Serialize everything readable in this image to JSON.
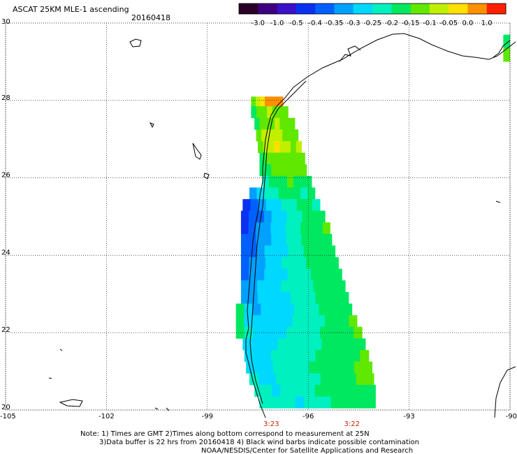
{
  "title": "ASCAT 25KM MLE-1 ascending",
  "date": "20160418",
  "colorbar": {
    "labels": [
      "-3.0",
      "-1.0",
      "-0.5",
      "-0.4",
      "-0.35",
      "-0.3",
      "-0.25",
      "-0.2",
      "-0.15",
      "-0.1",
      "-0.05",
      "0.0",
      "1.0"
    ],
    "colors": [
      "#2a0028",
      "#3f0080",
      "#3a10c8",
      "#0a30f0",
      "#0060ff",
      "#00a0ff",
      "#00d8ff",
      "#00f0c0",
      "#00e860",
      "#60e800",
      "#c0f000",
      "#ffe000",
      "#ff9000",
      "#ff2000"
    ]
  },
  "axes": {
    "x_ticks": [
      "-105",
      "-102",
      "-99",
      "-96",
      "-93",
      "-90"
    ],
    "y_ticks": [
      "30",
      "28",
      "26",
      "24",
      "22",
      "20"
    ],
    "lon_range": [
      -105,
      -90
    ],
    "lat_range": [
      20,
      30
    ]
  },
  "times": [
    {
      "label": "3:23",
      "lon": -97.1
    },
    {
      "label": "3:22",
      "lon": -94.7
    }
  ],
  "notes": [
    "Note: 1) Times are GMT 2)Times along bottom correspond to measurement at 25N",
    "3)Data buffer is 22 hrs from 20160418 4) Black wind barbs indicate possible contamination",
    "NOAA/NESDIS/Center for Satellite Applications and Research"
  ],
  "swath_rows": [
    {
      "lat": 27.95,
      "w": -97.7,
      "e": -96.75,
      "values": [
        -0.15,
        -0.1,
        -0.05,
        0.0,
        0.0,
        0.0,
        0.0
      ]
    },
    {
      "lat": 27.7,
      "w": -97.7,
      "e": -96.6,
      "values": [
        -0.2,
        -0.15,
        -0.15,
        -0.1,
        -0.15,
        -0.15,
        -0.15
      ]
    },
    {
      "lat": 27.4,
      "w": -97.6,
      "e": -96.4,
      "values": [
        -0.2,
        -0.15,
        -0.15,
        -0.15,
        -0.1,
        -0.15,
        -0.15,
        -0.15
      ]
    },
    {
      "lat": 27.1,
      "w": -97.55,
      "e": -96.3,
      "values": [
        -0.15,
        -0.1,
        -0.1,
        -0.1,
        -0.1,
        -0.15,
        -0.15,
        -0.15
      ]
    },
    {
      "lat": 26.8,
      "w": -97.5,
      "e": -96.2,
      "values": [
        -0.15,
        -0.1,
        -0.1,
        -0.05,
        -0.1,
        -0.1,
        -0.15,
        -0.1
      ]
    },
    {
      "lat": 26.5,
      "w": -97.45,
      "e": -96.1,
      "values": [
        -0.2,
        -0.15,
        -0.15,
        -0.15,
        -0.15,
        -0.15,
        -0.15,
        -0.15
      ]
    },
    {
      "lat": 26.2,
      "w": -97.45,
      "e": -96.05,
      "values": [
        -0.2,
        -0.2,
        -0.15,
        -0.15,
        -0.15,
        -0.15,
        -0.15,
        -0.15
      ]
    },
    {
      "lat": 25.9,
      "w": -97.35,
      "e": -95.9,
      "values": [
        -0.25,
        -0.2,
        -0.2,
        -0.2,
        -0.15,
        -0.2,
        -0.2,
        -0.2
      ]
    },
    {
      "lat": 25.6,
      "w": -97.75,
      "e": -95.8,
      "values": [
        -0.35,
        -0.3,
        -0.25,
        -0.25,
        -0.2,
        -0.2,
        -0.2,
        -0.25,
        -0.2
      ]
    },
    {
      "lat": 25.3,
      "w": -97.95,
      "e": -95.65,
      "values": [
        -0.45,
        -0.4,
        -0.35,
        -0.3,
        -0.3,
        -0.25,
        -0.25,
        -0.2,
        -0.2,
        -0.25
      ]
    },
    {
      "lat": 25.0,
      "w": -98.0,
      "e": -95.5,
      "values": [
        -0.45,
        -0.4,
        -0.4,
        -0.35,
        -0.3,
        -0.3,
        -0.25,
        -0.25,
        -0.2,
        -0.2,
        -0.2
      ]
    },
    {
      "lat": 24.7,
      "w": -98.0,
      "e": -95.35,
      "values": [
        -0.45,
        -0.4,
        -0.35,
        -0.35,
        -0.3,
        -0.3,
        -0.25,
        -0.25,
        -0.2,
        -0.2,
        -0.2,
        -0.15
      ]
    },
    {
      "lat": 24.4,
      "w": -98.0,
      "e": -95.3,
      "values": [
        -0.4,
        -0.4,
        -0.35,
        -0.35,
        -0.3,
        -0.3,
        -0.25,
        -0.25,
        -0.2,
        -0.2,
        -0.2,
        -0.2
      ]
    },
    {
      "lat": 24.1,
      "w": -98.0,
      "e": -95.2,
      "values": [
        -0.4,
        -0.4,
        -0.35,
        -0.3,
        -0.3,
        -0.3,
        -0.25,
        -0.25,
        -0.2,
        -0.2,
        -0.2,
        -0.2
      ]
    },
    {
      "lat": 23.8,
      "w": -98.0,
      "e": -95.1,
      "values": [
        -0.4,
        -0.35,
        -0.35,
        -0.3,
        -0.3,
        -0.25,
        -0.25,
        -0.25,
        -0.2,
        -0.2,
        -0.2,
        -0.2
      ]
    },
    {
      "lat": 23.5,
      "w": -98.0,
      "e": -95.0,
      "values": [
        -0.4,
        -0.35,
        -0.35,
        -0.3,
        -0.3,
        -0.3,
        -0.25,
        -0.25,
        -0.25,
        -0.2,
        -0.2,
        -0.2,
        -0.2
      ]
    },
    {
      "lat": 23.2,
      "w": -98.0,
      "e": -94.9,
      "values": [
        -0.35,
        -0.35,
        -0.3,
        -0.3,
        -0.3,
        -0.25,
        -0.25,
        -0.25,
        -0.25,
        -0.2,
        -0.2,
        -0.2,
        -0.2
      ]
    },
    {
      "lat": 22.9,
      "w": -98.0,
      "e": -94.8,
      "values": [
        -0.35,
        -0.35,
        -0.3,
        -0.3,
        -0.3,
        -0.3,
        -0.25,
        -0.25,
        -0.25,
        -0.2,
        -0.2,
        -0.2,
        -0.2
      ]
    },
    {
      "lat": 22.6,
      "w": -98.15,
      "e": -94.7,
      "values": [
        -0.2,
        -0.3,
        -0.35,
        -0.3,
        -0.3,
        -0.3,
        -0.3,
        -0.25,
        -0.25,
        -0.25,
        -0.2,
        -0.2,
        -0.2,
        -0.2
      ]
    },
    {
      "lat": 22.3,
      "w": -98.15,
      "e": -94.55,
      "values": [
        -0.2,
        -0.3,
        -0.3,
        -0.3,
        -0.3,
        -0.3,
        -0.3,
        -0.25,
        -0.25,
        -0.25,
        -0.25,
        -0.2,
        -0.2,
        -0.2,
        -0.15
      ]
    },
    {
      "lat": 22.0,
      "w": -98.15,
      "e": -94.4,
      "values": [
        -0.2,
        -0.25,
        -0.3,
        -0.3,
        -0.3,
        -0.3,
        -0.25,
        -0.25,
        -0.25,
        -0.25,
        -0.2,
        -0.2,
        -0.2,
        -0.2,
        -0.15
      ]
    },
    {
      "lat": 21.7,
      "w": -97.95,
      "e": -94.3,
      "values": [
        -0.3,
        -0.3,
        -0.3,
        -0.3,
        -0.25,
        -0.25,
        -0.25,
        -0.25,
        -0.25,
        -0.2,
        -0.2,
        -0.2,
        -0.2,
        -0.2
      ]
    },
    {
      "lat": 21.4,
      "w": -97.9,
      "e": -94.2,
      "values": [
        -0.3,
        -0.3,
        -0.3,
        -0.25,
        -0.25,
        -0.25,
        -0.25,
        -0.25,
        -0.2,
        -0.2,
        -0.2,
        -0.2,
        -0.2,
        -0.15
      ]
    },
    {
      "lat": 21.1,
      "w": -97.85,
      "e": -94.1,
      "values": [
        -0.3,
        -0.3,
        -0.3,
        -0.25,
        -0.25,
        -0.25,
        -0.25,
        -0.2,
        -0.2,
        -0.2,
        -0.2,
        -0.2,
        -0.15,
        -0.15
      ]
    },
    {
      "lat": 20.8,
      "w": -97.75,
      "e": -94.05,
      "values": [
        -0.25,
        -0.3,
        -0.3,
        -0.25,
        -0.25,
        -0.25,
        -0.25,
        -0.25,
        -0.2,
        -0.2,
        -0.2,
        -0.2,
        -0.15,
        -0.15
      ]
    },
    {
      "lat": 20.5,
      "w": -97.6,
      "e": -94.0,
      "values": [
        -0.25,
        -0.25,
        -0.3,
        -0.25,
        -0.25,
        -0.25,
        -0.25,
        -0.2,
        -0.2,
        -0.2,
        -0.2,
        -0.2,
        -0.2,
        -0.2
      ]
    },
    {
      "lat": 20.2,
      "w": -97.45,
      "e": -94.0,
      "values": [
        -0.25,
        -0.25,
        -0.25,
        -0.25,
        -0.3,
        -0.25,
        -0.25,
        -0.25,
        -0.2,
        -0.2,
        -0.2,
        -0.2,
        -0.2
      ]
    }
  ],
  "edge_strip": {
    "lon_w": -90.2,
    "lon_e": -90.0,
    "lat_s": 29.0,
    "lat_n": 29.7,
    "values": [
      -0.2,
      -0.15
    ]
  }
}
